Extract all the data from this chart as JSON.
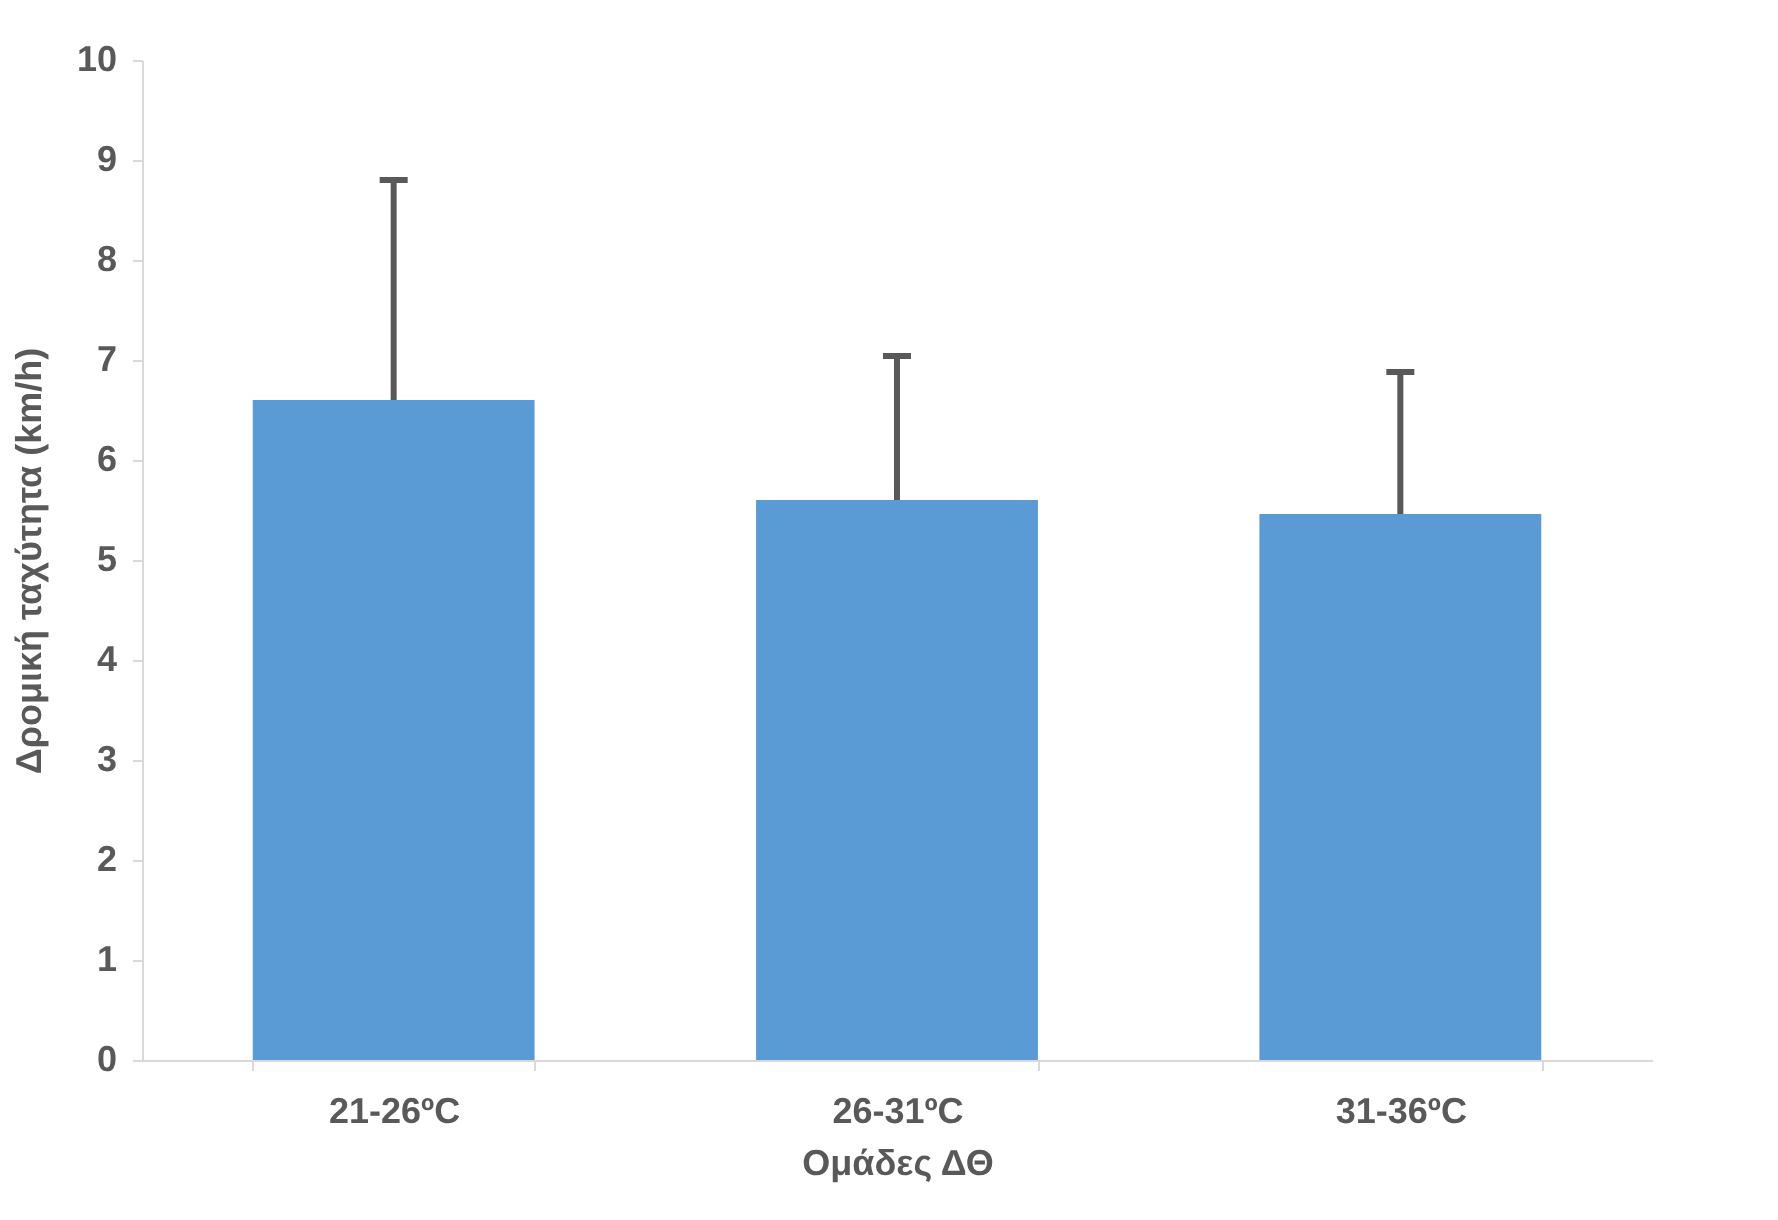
{
  "chart_data": {
    "type": "bar",
    "xlabel": "Ομάδες ΔΘ",
    "ylabel": "Δρομική ταχύτητα (km/h)",
    "categories": [
      "21-26ºC",
      "26-31ºC",
      "31-36ºC"
    ],
    "values": [
      6.6,
      5.6,
      5.46
    ],
    "errors": [
      [
        6.6,
        8.8
      ],
      [
        5.6,
        7.04
      ],
      [
        5.46,
        6.88
      ]
    ],
    "color": "#5b9bd5",
    "ylim": [
      0,
      10
    ],
    "yticks": [
      0,
      1,
      2,
      3,
      4,
      5,
      6,
      7,
      8,
      9,
      10
    ],
    "grid": false
  }
}
